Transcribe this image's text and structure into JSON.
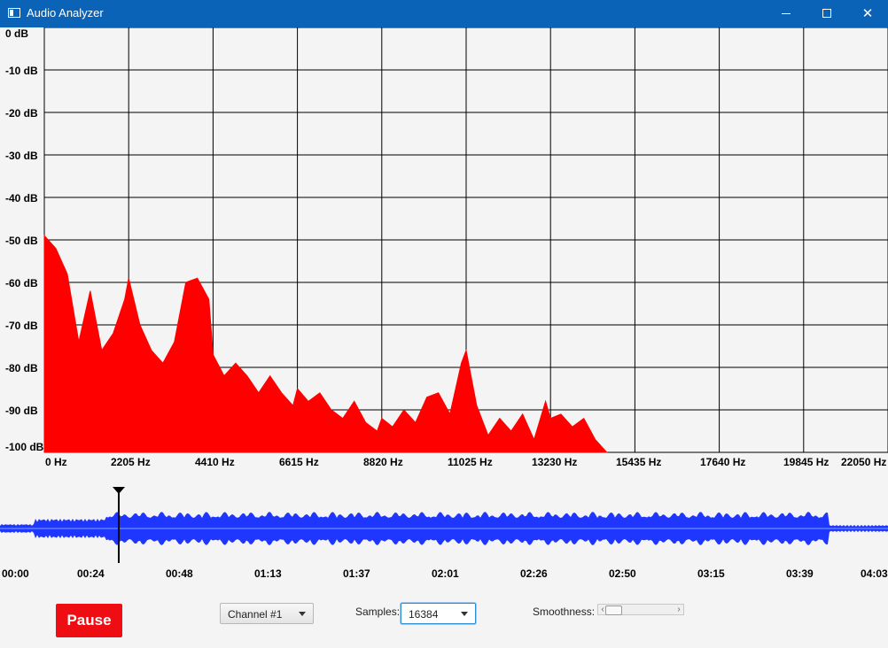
{
  "window": {
    "title": "Audio Analyzer"
  },
  "chart_data": {
    "type": "area",
    "x": [
      0,
      300,
      600,
      900,
      1200,
      1500,
      1800,
      2100,
      2205,
      2500,
      2800,
      3100,
      3400,
      3700,
      4000,
      4300,
      4410,
      4700,
      5000,
      5300,
      5600,
      5900,
      6200,
      6500,
      6615,
      6900,
      7200,
      7500,
      7800,
      8100,
      8400,
      8700,
      8820,
      9100,
      9400,
      9700,
      10000,
      10300,
      10600,
      10900,
      11025,
      11300,
      11600,
      11900,
      12200,
      12500,
      12800,
      13100,
      13230,
      13500,
      13800,
      14100,
      14400,
      14700
    ],
    "y": [
      -49,
      -52,
      -58,
      -74,
      -62,
      -76,
      -72,
      -64,
      -59,
      -70,
      -76,
      -79,
      -74,
      -60,
      -59,
      -64,
      -77,
      -82,
      -79,
      -82,
      -86,
      -82,
      -86,
      -89,
      -85,
      -88,
      -86,
      -90,
      -92,
      -88,
      -93,
      -95,
      -92,
      -94,
      -90,
      -93,
      -87,
      -86,
      -91,
      -79,
      -76,
      -89,
      -96,
      -92,
      -95,
      -91,
      -97,
      -88,
      -92,
      -91,
      -94,
      -92,
      -97,
      -100
    ],
    "xlabel": "",
    "ylabel": "",
    "xlim": [
      0,
      22050
    ],
    "ylim": [
      -100,
      0
    ],
    "grid": true
  },
  "spectrum": {
    "y_ticks": [
      "0 dB",
      "-10 dB",
      "-20 dB",
      "-30 dB",
      "-40 dB",
      "-50 dB",
      "-60 dB",
      "-70 dB",
      "-80 dB",
      "-90 dB",
      "-100 dB"
    ],
    "x_ticks": [
      "0 Hz",
      "2205 Hz",
      "4410 Hz",
      "6615 Hz",
      "8820 Hz",
      "11025 Hz",
      "13230 Hz",
      "15435 Hz",
      "17640 Hz",
      "19845 Hz",
      "22050 Hz"
    ],
    "fill_color": "#ff0000"
  },
  "waveform": {
    "time_ticks": [
      "00:00",
      "00:24",
      "00:48",
      "01:13",
      "01:37",
      "02:01",
      "02:26",
      "02:50",
      "03:15",
      "03:39",
      "04:03"
    ],
    "playhead_time": "00:32",
    "wave_color": "#1f36ff"
  },
  "controls": {
    "pause_label": "Pause",
    "channel_value": "Channel #1",
    "samples_label": "Samples:",
    "samples_value": "16384",
    "smoothness_label": "Smoothness:",
    "smoothness_value": 0.1
  }
}
